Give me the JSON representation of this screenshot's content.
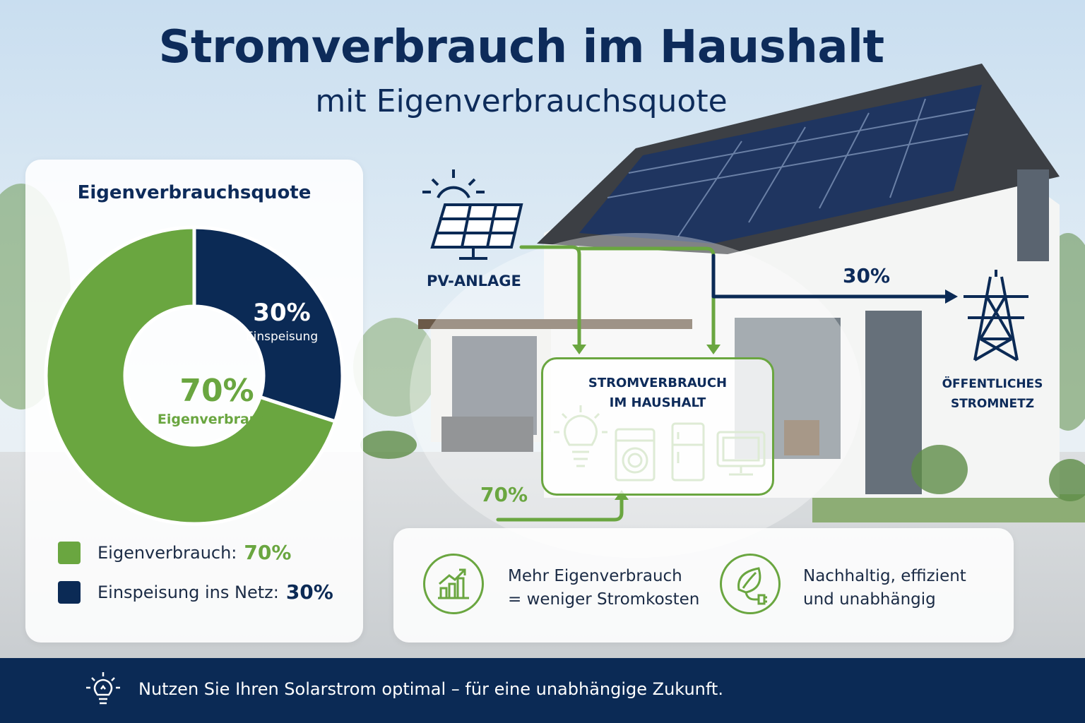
{
  "header": {
    "title": "Stromverbrauch im Haushalt",
    "subtitle": "mit Eigenverbrauchsquote"
  },
  "chart_data": {
    "type": "pie",
    "title": "Eigenverbrauchsquote",
    "labels": [
      "Eigenverbrauch",
      "Einspeisung"
    ],
    "values": [
      70,
      30
    ],
    "value_labels": [
      "70%",
      "30%"
    ],
    "colors": [
      "#6aa640",
      "#0b2a55"
    ],
    "legend": [
      {
        "label": "Eigenverbrauch:",
        "value": "70%"
      },
      {
        "label": "Einspeisung ins Netz:",
        "value": "30%"
      }
    ],
    "legend_placement": "bottom"
  },
  "flow": {
    "pv_label": "PV-ANLAGE",
    "house_label": "STROMVERBRAUCH\nIM HAUSHALT",
    "grid_label": "ÖFFENTLICHES\nSTROMNETZ",
    "grid_share": "30%",
    "self_share": "70%",
    "icons": [
      "lightbulb-icon",
      "washing-machine-icon",
      "fridge-icon",
      "tv-icon"
    ]
  },
  "benefits": [
    {
      "icon": "chart-growth-icon",
      "text": "Mehr Eigenverbrauch\n= weniger Stromkosten"
    },
    {
      "icon": "leaf-plug-icon",
      "text": "Nachhaltig, effizient\nund unabhängig"
    }
  ],
  "footer": {
    "icon": "lightbulb-icon",
    "text": "Nutzen Sie Ihren Solarstrom optimal – für eine unabhängige Zukunft."
  },
  "colors": {
    "green": "#6aa640",
    "navy": "#0b2a55"
  }
}
